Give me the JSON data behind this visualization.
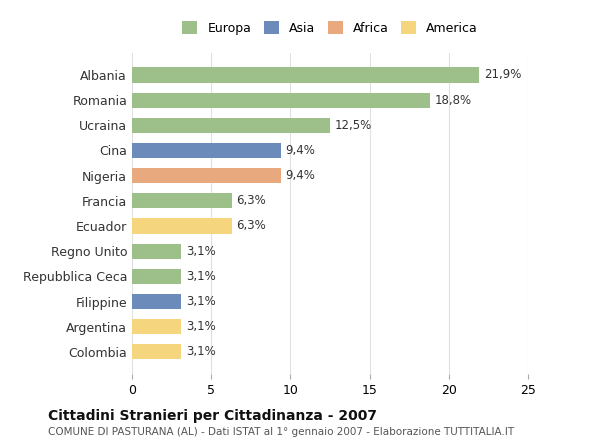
{
  "countries": [
    "Albania",
    "Romania",
    "Ucraina",
    "Cina",
    "Nigeria",
    "Francia",
    "Ecuador",
    "Regno Unito",
    "Repubblica Ceca",
    "Filippine",
    "Argentina",
    "Colombia"
  ],
  "values": [
    21.9,
    18.8,
    12.5,
    9.4,
    9.4,
    6.3,
    6.3,
    3.1,
    3.1,
    3.1,
    3.1,
    3.1
  ],
  "labels": [
    "21,9%",
    "18,8%",
    "12,5%",
    "9,4%",
    "9,4%",
    "6,3%",
    "6,3%",
    "3,1%",
    "3,1%",
    "3,1%",
    "3,1%",
    "3,1%"
  ],
  "continents": [
    "Europa",
    "Europa",
    "Europa",
    "Asia",
    "Africa",
    "Europa",
    "America",
    "Europa",
    "Europa",
    "Asia",
    "America",
    "America"
  ],
  "continent_colors": {
    "Europa": "#9dc08b",
    "Asia": "#6b8cba",
    "Africa": "#e8a97e",
    "America": "#f5d57e"
  },
  "legend_order": [
    "Europa",
    "Asia",
    "Africa",
    "America"
  ],
  "xlim": [
    0,
    25
  ],
  "xticks": [
    0,
    5,
    10,
    15,
    20,
    25
  ],
  "title": "Cittadini Stranieri per Cittadinanza - 2007",
  "subtitle": "COMUNE DI PASTURANA (AL) - Dati ISTAT al 1° gennaio 2007 - Elaborazione TUTTITALIA.IT",
  "background_color": "#ffffff",
  "grid_color": "#e0e0e0",
  "bar_height": 0.6
}
